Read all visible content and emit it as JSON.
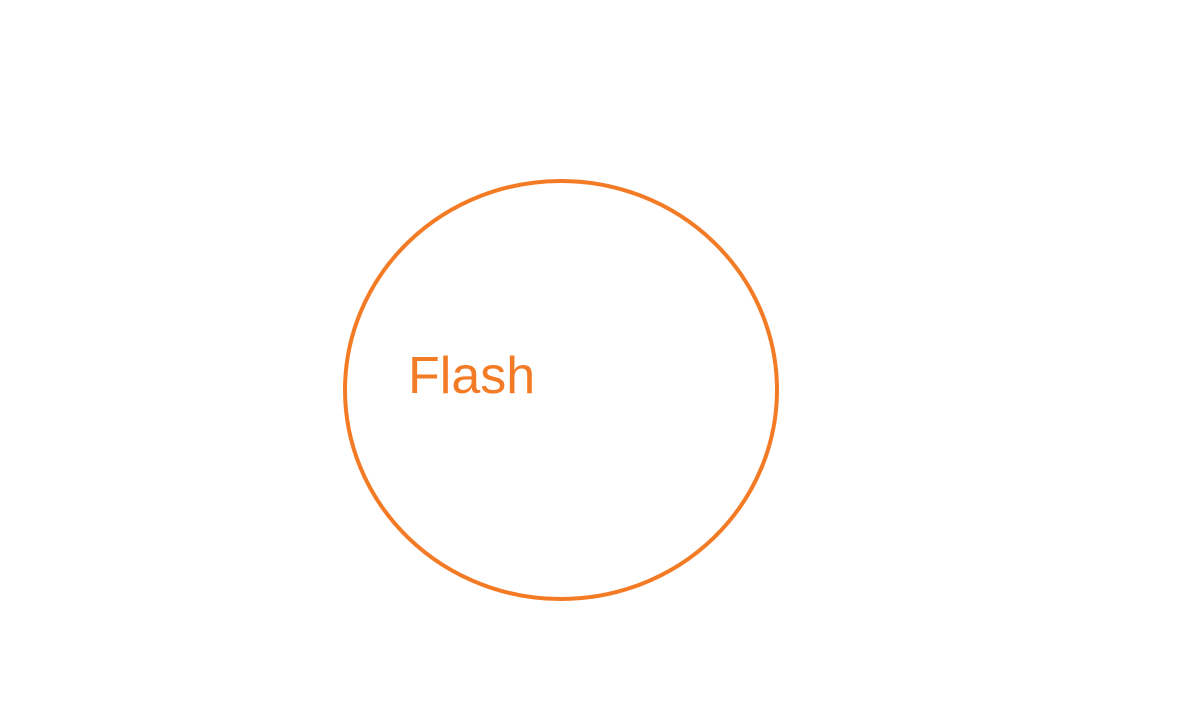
{
  "diagram": {
    "label": "Flash",
    "stroke_color": "#F47B25",
    "text_color": "#F47B25"
  }
}
